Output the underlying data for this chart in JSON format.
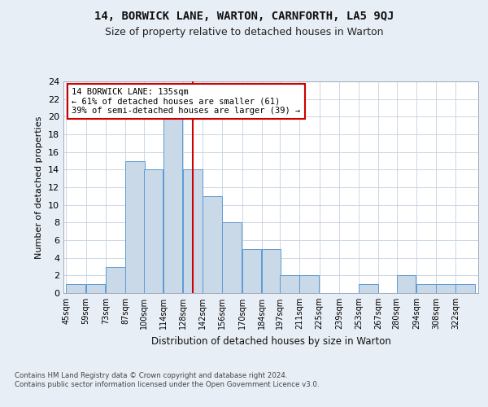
{
  "title": "14, BORWICK LANE, WARTON, CARNFORTH, LA5 9QJ",
  "subtitle": "Size of property relative to detached houses in Warton",
  "xlabel": "Distribution of detached houses by size in Warton",
  "ylabel": "Number of detached properties",
  "bins": [
    45,
    59,
    73,
    87,
    100,
    114,
    128,
    142,
    156,
    170,
    184,
    197,
    211,
    225,
    239,
    253,
    267,
    280,
    294,
    308,
    322
  ],
  "heights": [
    1,
    1,
    3,
    15,
    14,
    20,
    14,
    11,
    8,
    5,
    5,
    2,
    2,
    0,
    0,
    1,
    0,
    2,
    1,
    1,
    1
  ],
  "bar_color": "#c9d9e8",
  "bar_edge_color": "#5b9bd5",
  "vline_x": 135,
  "vline_color": "#cc0000",
  "annotation_text": "14 BORWICK LANE: 135sqm\n← 61% of detached houses are smaller (61)\n39% of semi-detached houses are larger (39) →",
  "annotation_box_color": "#ffffff",
  "annotation_box_edge_color": "#cc0000",
  "ylim": [
    0,
    24
  ],
  "yticks": [
    0,
    2,
    4,
    6,
    8,
    10,
    12,
    14,
    16,
    18,
    20,
    22,
    24
  ],
  "bg_color": "#e8eef5",
  "plot_bg_color": "#ffffff",
  "footer_text": "Contains HM Land Registry data © Crown copyright and database right 2024.\nContains public sector information licensed under the Open Government Licence v3.0.",
  "bin_width": 14
}
